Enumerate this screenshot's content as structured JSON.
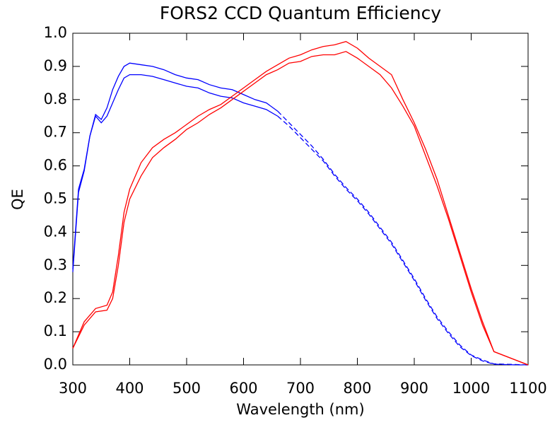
{
  "chart_data": {
    "type": "line",
    "title": "FORS2 CCD Quantum Efficiency",
    "xlabel": "Wavelength (nm)",
    "ylabel": "QE",
    "xlim": [
      300,
      1100
    ],
    "ylim": [
      0,
      1
    ],
    "xticks": [
      300,
      400,
      500,
      600,
      700,
      800,
      900,
      1000,
      1100
    ],
    "yticks": [
      {
        "value": 0,
        "label": "0.0"
      },
      0.1,
      0.2,
      0.3,
      0.4,
      0.5,
      0.6,
      0.7,
      0.8,
      0.9,
      {
        "value": 1,
        "label": "1.0"
      }
    ],
    "series": [
      {
        "color": "#0000ff",
        "dashed": false,
        "x": [
          300,
          310,
          320,
          330,
          340,
          350,
          360,
          370,
          380,
          390,
          400,
          420,
          440,
          460,
          480,
          500,
          520,
          540,
          560,
          580,
          600,
          620,
          640,
          660
        ],
        "values": [
          0.29,
          0.53,
          0.59,
          0.69,
          0.755,
          0.74,
          0.775,
          0.83,
          0.87,
          0.9,
          0.91,
          0.905,
          0.9,
          0.89,
          0.875,
          0.865,
          0.86,
          0.845,
          0.835,
          0.83,
          0.815,
          0.8,
          0.79,
          0.765
        ]
      },
      {
        "color": "#0000ff",
        "dashed": false,
        "x": [
          300,
          310,
          320,
          330,
          340,
          350,
          360,
          370,
          380,
          390,
          400,
          420,
          440,
          460,
          480,
          500,
          520,
          540,
          560,
          580,
          600,
          620,
          640,
          660
        ],
        "values": [
          0.28,
          0.52,
          0.585,
          0.69,
          0.75,
          0.73,
          0.75,
          0.79,
          0.83,
          0.865,
          0.875,
          0.875,
          0.87,
          0.86,
          0.85,
          0.84,
          0.835,
          0.82,
          0.81,
          0.805,
          0.79,
          0.78,
          0.77,
          0.75
        ]
      },
      {
        "color": "#0000ff",
        "dashed": true,
        "x": [
          660,
          680,
          700,
          720,
          740,
          760,
          780,
          800,
          820,
          840,
          860,
          880,
          900,
          920,
          940,
          960,
          980,
          1000,
          1020,
          1040,
          1060,
          1080,
          1100
        ],
        "values": [
          0.765,
          0.73,
          0.695,
          0.66,
          0.62,
          0.575,
          0.535,
          0.5,
          0.46,
          0.415,
          0.37,
          0.315,
          0.26,
          0.2,
          0.145,
          0.1,
          0.06,
          0.03,
          0.015,
          0.003,
          0.002,
          0.001,
          0.0
        ]
      },
      {
        "color": "#0000ff",
        "dashed": true,
        "x": [
          660,
          680,
          700,
          720,
          740,
          760,
          780,
          800,
          820,
          840,
          860,
          880,
          900,
          920,
          940,
          960,
          980,
          1000,
          1020,
          1040,
          1060,
          1080,
          1100
        ],
        "values": [
          0.75,
          0.72,
          0.685,
          0.65,
          0.615,
          0.57,
          0.53,
          0.495,
          0.455,
          0.41,
          0.365,
          0.31,
          0.255,
          0.195,
          0.14,
          0.095,
          0.055,
          0.028,
          0.012,
          0.002,
          0.001,
          0.0,
          0.0
        ]
      },
      {
        "color": "#ff0000",
        "dashed": false,
        "x": [
          300,
          320,
          340,
          360,
          370,
          380,
          390,
          400,
          420,
          440,
          460,
          480,
          500,
          520,
          540,
          560,
          580,
          600,
          620,
          640,
          660,
          680,
          700,
          720,
          740,
          760,
          780,
          800,
          820,
          840,
          860,
          880,
          900,
          920,
          940,
          960,
          980,
          1000,
          1020,
          1040,
          1100
        ],
        "values": [
          0.05,
          0.13,
          0.17,
          0.18,
          0.22,
          0.33,
          0.46,
          0.53,
          0.61,
          0.655,
          0.68,
          0.7,
          0.725,
          0.75,
          0.77,
          0.785,
          0.81,
          0.835,
          0.86,
          0.885,
          0.905,
          0.925,
          0.935,
          0.95,
          0.96,
          0.965,
          0.975,
          0.955,
          0.925,
          0.9,
          0.875,
          0.8,
          0.73,
          0.65,
          0.56,
          0.45,
          0.34,
          0.23,
          0.13,
          0.04,
          0.0
        ]
      },
      {
        "color": "#ff0000",
        "dashed": false,
        "x": [
          300,
          320,
          340,
          360,
          370,
          380,
          390,
          400,
          420,
          440,
          460,
          480,
          500,
          520,
          540,
          560,
          580,
          600,
          620,
          640,
          660,
          680,
          700,
          720,
          740,
          760,
          780,
          800,
          820,
          840,
          860,
          880,
          900,
          920,
          940,
          960,
          980,
          1000,
          1020,
          1040,
          1100
        ],
        "values": [
          0.05,
          0.12,
          0.16,
          0.165,
          0.2,
          0.3,
          0.43,
          0.5,
          0.57,
          0.625,
          0.655,
          0.68,
          0.71,
          0.73,
          0.755,
          0.775,
          0.8,
          0.825,
          0.85,
          0.875,
          0.89,
          0.91,
          0.915,
          0.93,
          0.935,
          0.935,
          0.945,
          0.925,
          0.9,
          0.875,
          0.835,
          0.78,
          0.72,
          0.63,
          0.54,
          0.44,
          0.33,
          0.22,
          0.12,
          0.04,
          0.0
        ]
      }
    ]
  }
}
